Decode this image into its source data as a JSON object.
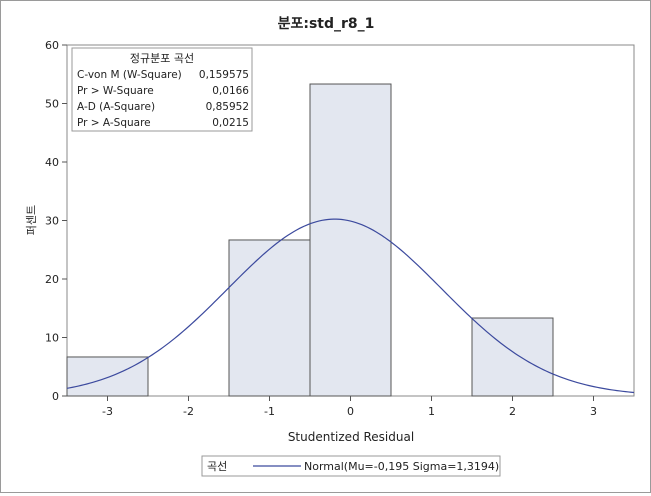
{
  "chart_data": {
    "type": "bar",
    "title": "분포:std_r8_1",
    "xlabel": "Studentized Residual",
    "ylabel": "퍼센트",
    "xlim": [
      -3.5,
      3.5
    ],
    "ylim": [
      0,
      60
    ],
    "x_ticks": [
      "-3",
      "-2",
      "-1",
      "0",
      "1",
      "2",
      "3"
    ],
    "y_ticks": [
      "0",
      "10",
      "20",
      "30",
      "40",
      "50",
      "60"
    ],
    "bins": [
      {
        "x0": -3.5,
        "x1": -2.5,
        "value": 6.67
      },
      {
        "x0": -2.5,
        "x1": -1.5,
        "value": 0
      },
      {
        "x0": -1.5,
        "x1": -0.5,
        "value": 26.67
      },
      {
        "x0": -0.5,
        "x1": 0.5,
        "value": 53.33
      },
      {
        "x0": 0.5,
        "x1": 1.5,
        "value": 0
      },
      {
        "x0": 1.5,
        "x1": 2.5,
        "value": 13.33
      }
    ],
    "curve": {
      "label": "Normal(Mu=-0,195 Sigma=1,3194)",
      "mu": -0.195,
      "sigma": 1.3194,
      "bin_width": 1.0
    },
    "stats_table": {
      "title": "정규분포 곡선",
      "rows": [
        {
          "label": "C-von M (W-Square)",
          "value": "0,159575"
        },
        {
          "label": "Pr > W-Square",
          "value": "0,0166"
        },
        {
          "label": "A-D (A-Square)",
          "value": "0,85952"
        },
        {
          "label": "Pr > A-Square",
          "value": "0,0215"
        }
      ]
    },
    "legend": {
      "title": "곡선",
      "entry": "Normal(Mu=-0,195 Sigma=1,3194)",
      "position": "bottom"
    },
    "colors": {
      "bar_fill": "#e3e7f0",
      "bar_stroke": "#555555",
      "curve": "#3c4a9e"
    }
  }
}
